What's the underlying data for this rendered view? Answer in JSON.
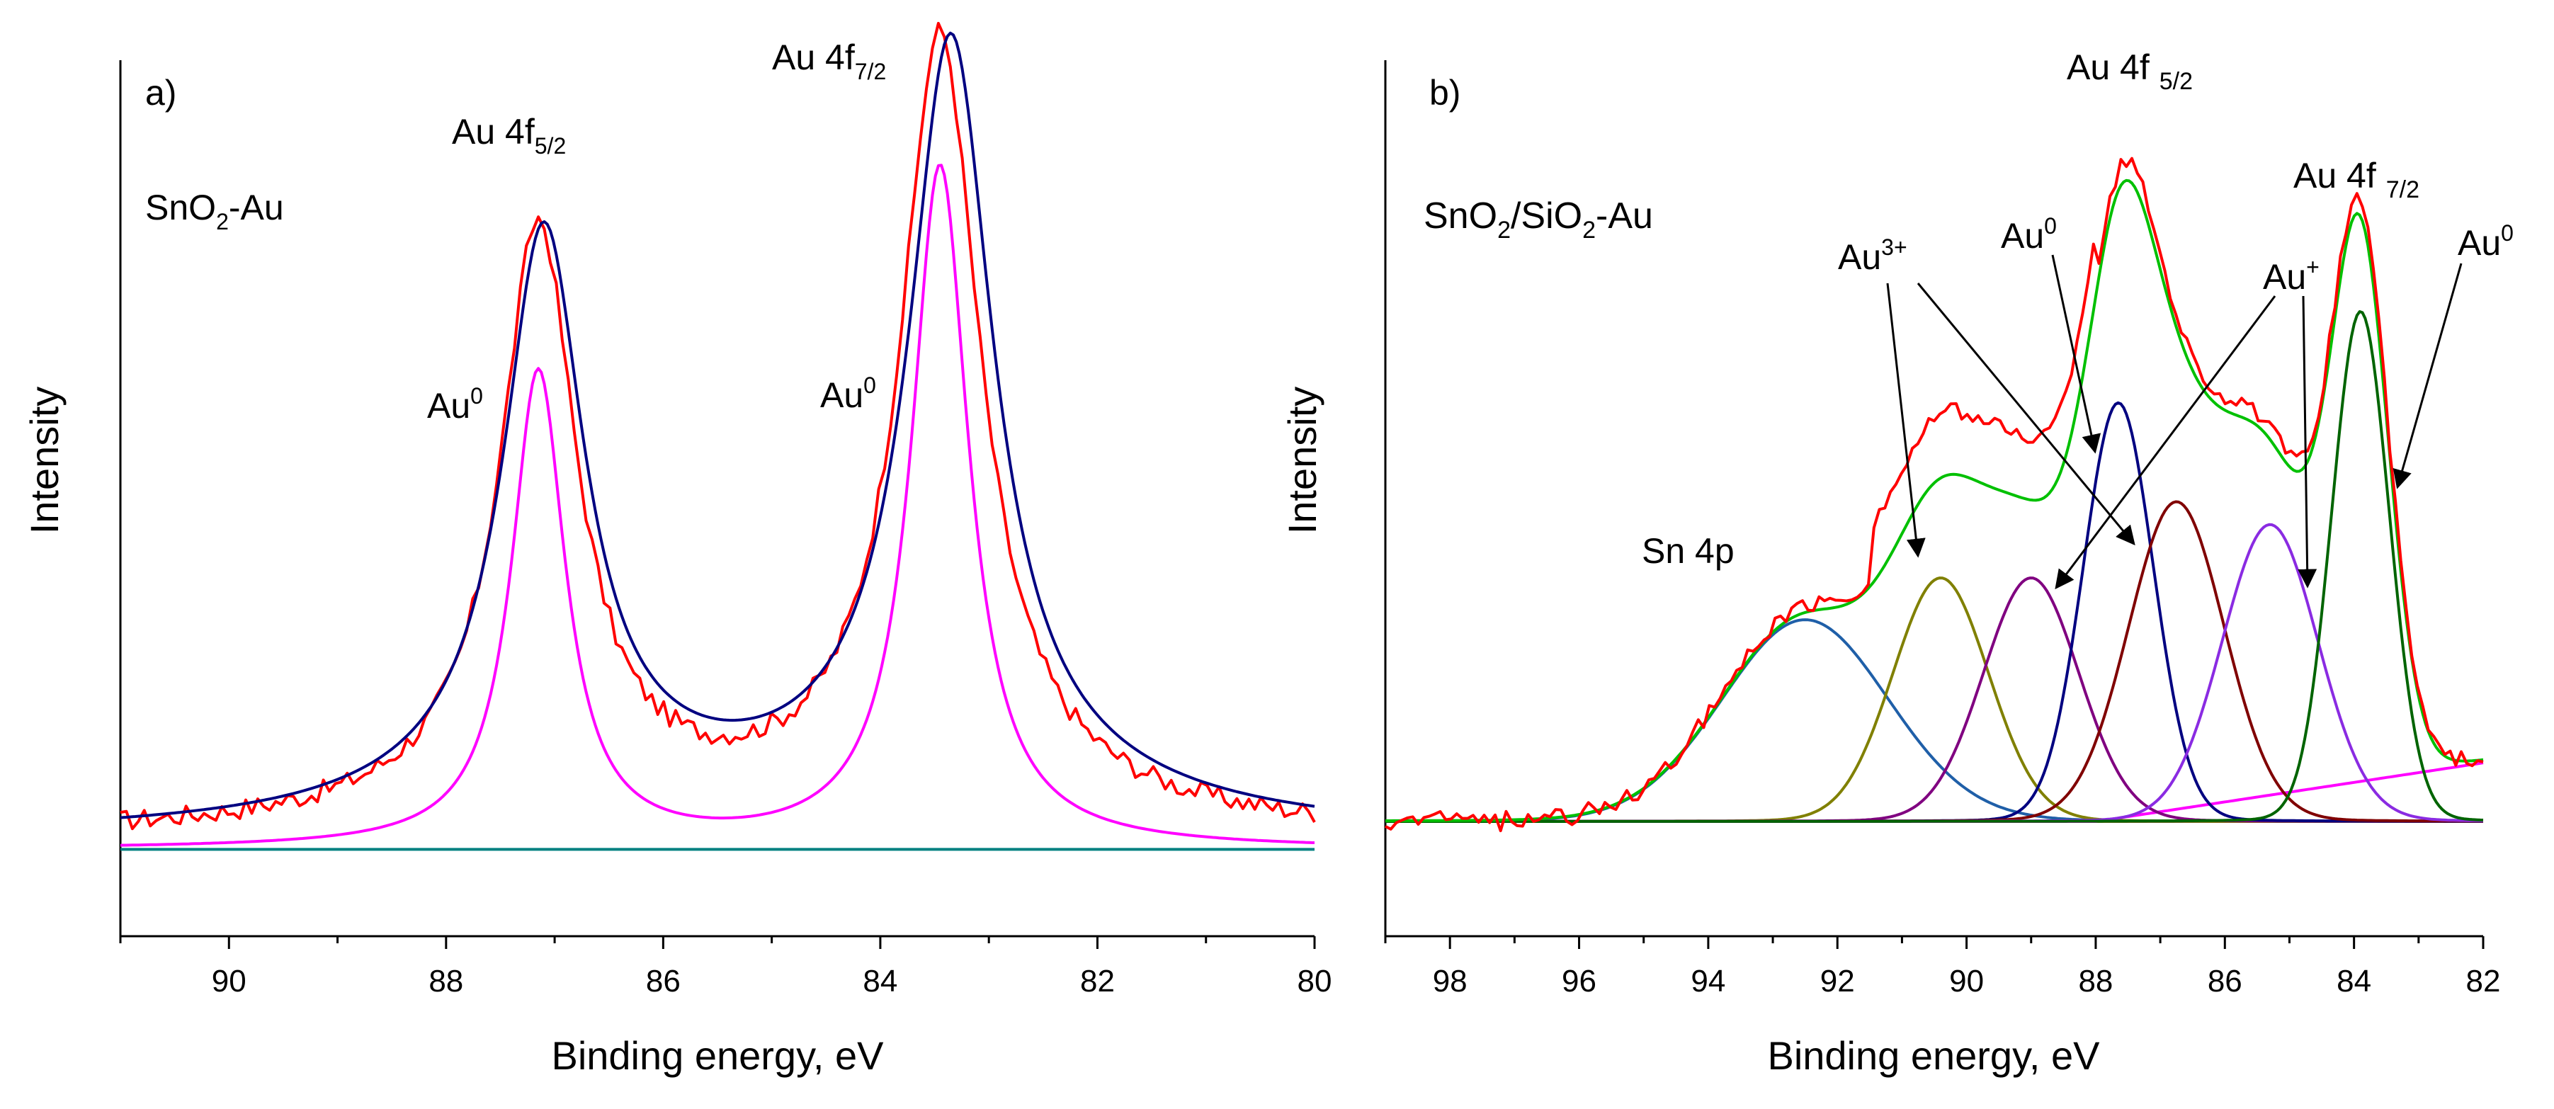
{
  "chart_data": [
    {
      "type": "line",
      "panel_label": "a)",
      "sample_label": {
        "main": "SnO",
        "sub": "2",
        "rest": "-Au"
      },
      "xlabel": "Binding energy, eV",
      "ylabel": "Intensity",
      "xlim": [
        91,
        80
      ],
      "x_reversed": true,
      "ylim": [
        0,
        1
      ],
      "xticks": [
        90,
        88,
        86,
        84,
        82,
        80
      ],
      "yticks_shown": false,
      "series": [
        {
          "name": "experimental",
          "color": "#ff0000",
          "noise": 0.012,
          "peaks": [
            {
              "center": 87.15,
              "amp": 0.715,
              "width": 0.42
            },
            {
              "center": 83.45,
              "amp": 0.945,
              "width": 0.44
            }
          ],
          "baseline": 0.02,
          "tail": 0.06
        },
        {
          "name": "envelope fit",
          "color": "#000080",
          "noise": 0,
          "peaks": [
            {
              "center": 87.1,
              "amp": 0.7,
              "width": 0.45
            },
            {
              "center": 83.35,
              "amp": 0.93,
              "width": 0.47
            }
          ],
          "baseline": 0.02,
          "tail": 0.07
        },
        {
          "name": "Au0 component",
          "color": "#ff00ff",
          "noise": 0,
          "peaks": [
            {
              "center": 87.15,
              "amp": 0.6,
              "width": 0.3
            },
            {
              "center": 83.45,
              "amp": 0.86,
              "width": 0.32
            }
          ],
          "baseline": 0.005,
          "tail": 0
        },
        {
          "name": "background",
          "color": "#008080",
          "noise": 0,
          "peaks": [],
          "baseline": 0.005,
          "tail": 0
        }
      ],
      "annotations": [
        {
          "text": "Au 4f",
          "sub": "5/2",
          "x": 87.6,
          "y": 0.83
        },
        {
          "text": "Au 4f",
          "sub": "7/2",
          "x": 84.2,
          "y": 1.0
        },
        {
          "text": "Au",
          "sup": "0",
          "x": 88.5,
          "y": 0.51
        },
        {
          "text": "Au",
          "sup": "0",
          "x": 84.9,
          "y": 0.53
        }
      ]
    },
    {
      "type": "line",
      "panel_label": "b)",
      "sample_label": {
        "main": "SnO",
        "sub": "2",
        "mid": "/SiO",
        "sub2": "2",
        "rest": "-Au"
      },
      "xlabel": "Binding energy, eV",
      "ylabel": "Intensity",
      "xlim": [
        99,
        82
      ],
      "x_reversed": true,
      "ylim": [
        0,
        1
      ],
      "xticks": [
        98,
        96,
        94,
        92,
        90,
        88,
        86,
        84,
        82
      ],
      "yticks_shown": false,
      "components": [
        {
          "name": "Sn 4p",
          "color": "#1f5fa8",
          "center": 92.5,
          "amp": 0.265,
          "width": 1.3
        },
        {
          "name": "Au3+ 4f5/2",
          "color": "#808000",
          "center": 90.4,
          "amp": 0.32,
          "width": 0.75
        },
        {
          "name": "Au+ 4f5/2",
          "color": "#800080",
          "center": 89.0,
          "amp": 0.32,
          "width": 0.75
        },
        {
          "name": "Au0 4f5/2",
          "color": "#000080",
          "center": 87.65,
          "amp": 0.55,
          "width": 0.55
        },
        {
          "name": "Au3+ 4f7/2",
          "color": "#800000",
          "center": 86.75,
          "amp": 0.42,
          "width": 0.75
        },
        {
          "name": "Au+ 4f7/2",
          "color": "#8a2be2",
          "center": 85.3,
          "amp": 0.39,
          "width": 0.75
        },
        {
          "name": "Au0 4f7/2",
          "color": "#006400",
          "center": 83.9,
          "amp": 0.67,
          "width": 0.45
        }
      ],
      "series": [
        {
          "name": "experimental",
          "color": "#ff0000"
        },
        {
          "name": "envelope fit",
          "color": "#00c000"
        },
        {
          "name": "background",
          "color": "#ff00ff"
        },
        {
          "name": "baseline",
          "color": "#996633"
        }
      ],
      "annotations": [
        {
          "text": "Au 4f",
          "sub": "5/2",
          "x": 88.6,
          "y": 0.94
        },
        {
          "text": "Au 4f",
          "sub": "7/2",
          "x": 85.1,
          "y": 0.78
        },
        {
          "text": "Au",
          "sup": "3+",
          "x": 91.9,
          "y": 0.68
        },
        {
          "text": "Au",
          "sup": "0",
          "x": 88.9,
          "y": 0.7
        },
        {
          "text": "Au",
          "sup": "+",
          "x": 85.9,
          "y": 0.65
        },
        {
          "text": "Au",
          "sup": "0",
          "x": 82.5,
          "y": 0.69
        },
        {
          "text": "Sn 4p",
          "x": 94.8,
          "y": 0.33
        }
      ]
    }
  ]
}
